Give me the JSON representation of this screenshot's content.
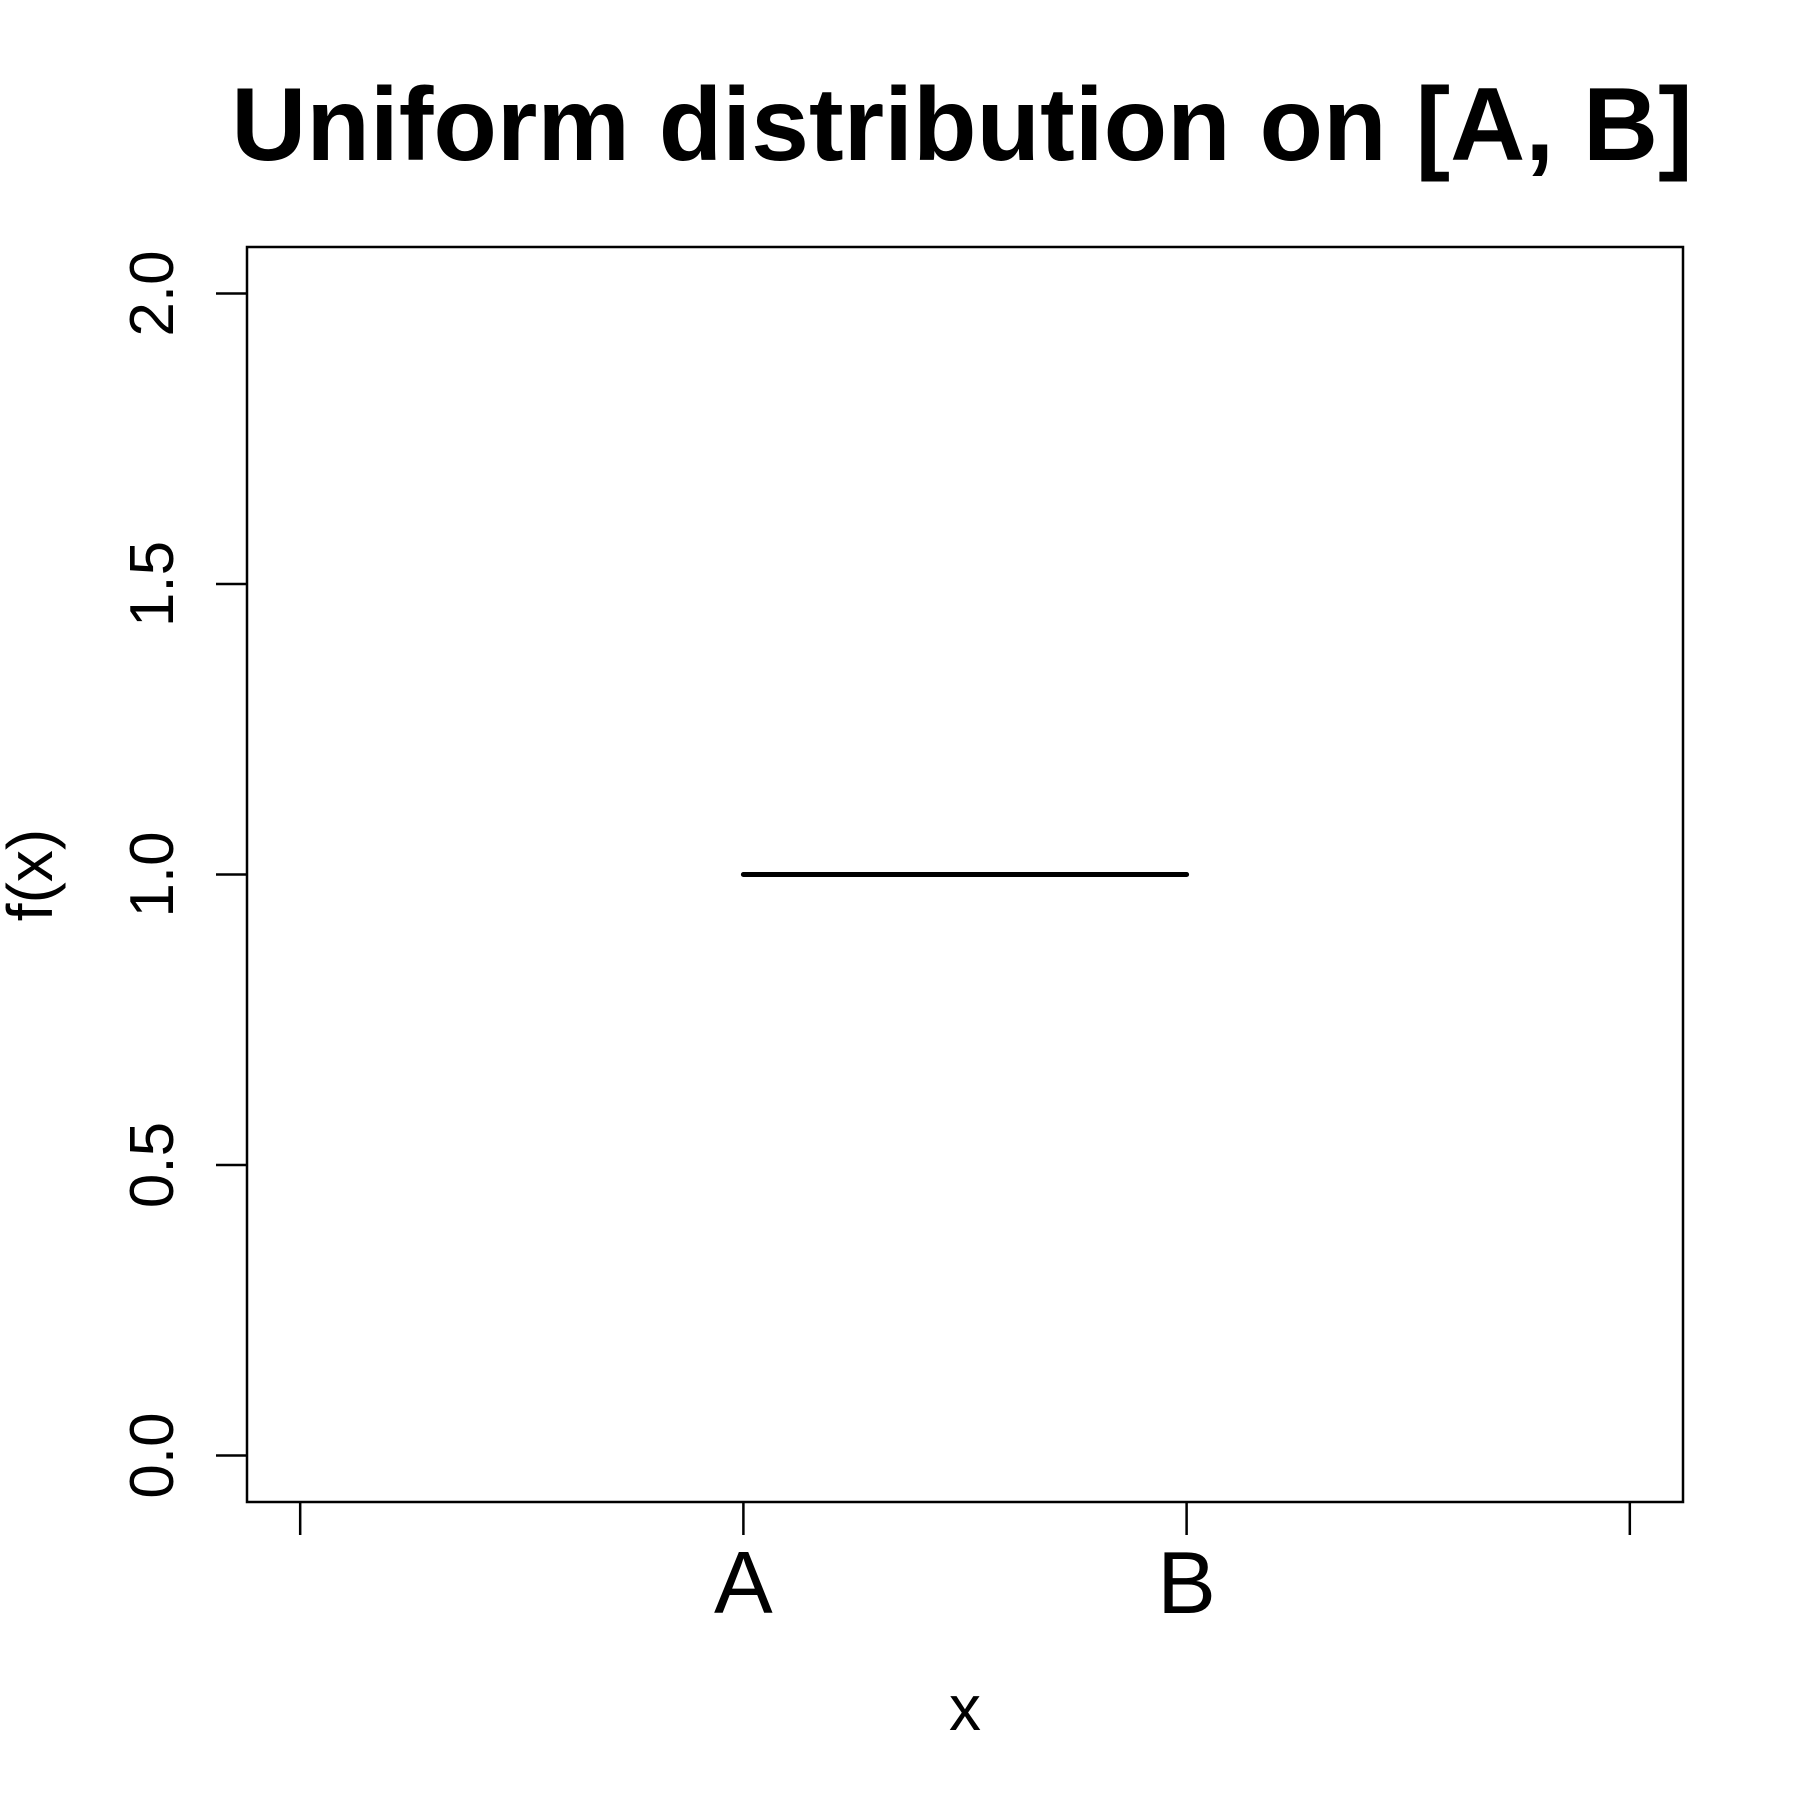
{
  "chart_data": {
    "type": "line",
    "title": "Uniform distribution on [A, B]",
    "xlabel": "x",
    "ylabel": "f(x)",
    "ylim": [
      -0.08,
      2.08
    ],
    "xlim": [
      -0.12,
      3.12
    ],
    "x_ticks": [
      {
        "value": 0,
        "label": ""
      },
      {
        "value": 1,
        "label": "A"
      },
      {
        "value": 2,
        "label": "B"
      },
      {
        "value": 3,
        "label": ""
      }
    ],
    "y_ticks": [
      {
        "value": 0.0,
        "label": "0.0"
      },
      {
        "value": 0.5,
        "label": "0.5"
      },
      {
        "value": 1.0,
        "label": "1.0"
      },
      {
        "value": 1.5,
        "label": "1.5"
      },
      {
        "value": 2.0,
        "label": "2.0"
      }
    ],
    "series": [
      {
        "x": [
          1,
          2
        ],
        "y": [
          1.0,
          1.0
        ]
      }
    ],
    "grid": false,
    "colors": {
      "line": "#000000",
      "axis": "#000000",
      "background": "#ffffff"
    }
  }
}
